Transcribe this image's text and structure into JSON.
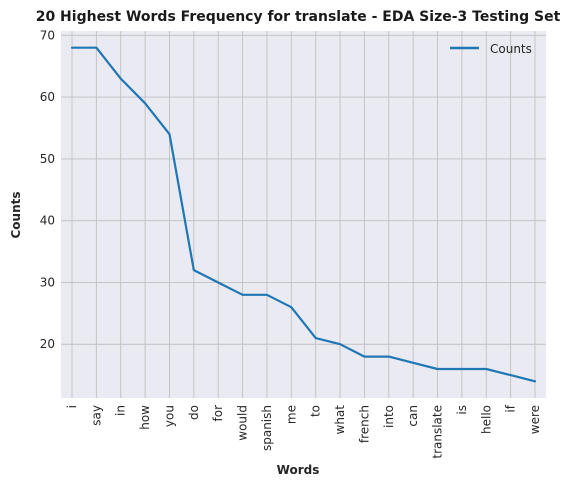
{
  "chart_data": {
    "type": "line",
    "title": "20 Highest Words Frequency for translate - EDA Size-3 Testing Set",
    "xlabel": "Words",
    "ylabel": "Counts",
    "categories": [
      "i",
      "say",
      "in",
      "how",
      "you",
      "do",
      "for",
      "would",
      "spanish",
      "me",
      "to",
      "what",
      "french",
      "into",
      "can",
      "translate",
      "is",
      "hello",
      "if",
      "were"
    ],
    "series": [
      {
        "name": "Counts",
        "values": [
          68,
          68,
          63,
          59,
          54,
          32,
          30,
          28,
          28,
          26,
          21,
          20,
          18,
          18,
          17,
          16,
          16,
          16,
          15,
          14
        ]
      }
    ],
    "ylim": [
      11.3,
      70.7
    ],
    "yticks": [
      "20",
      "30",
      "40",
      "50",
      "60",
      "70"
    ],
    "grid": true,
    "legend": "top-right",
    "colors": {
      "line": "#1f77b4",
      "plot_bg": "#eaeaf2",
      "grid": "#c0c0c0"
    }
  }
}
